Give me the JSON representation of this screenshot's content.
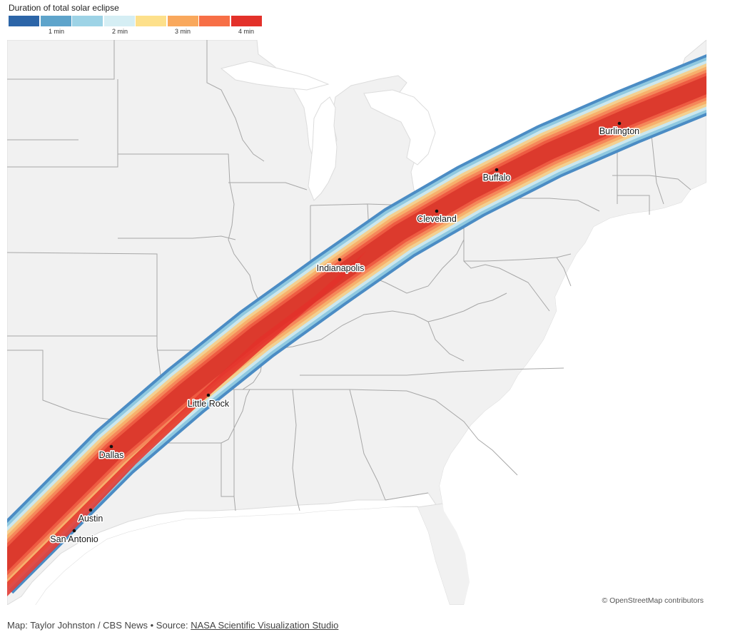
{
  "legend": {
    "title": "Duration of total solar eclipse",
    "colors": [
      "#2c65a8",
      "#5ea4cb",
      "#9dd3e6",
      "#d5eef4",
      "#fde08b",
      "#f9a85c",
      "#f76f46",
      "#e3312a"
    ],
    "ticks": [
      "1 min",
      "2 min",
      "3 min",
      "4 min"
    ]
  },
  "path_band_colors": [
    "#4b8cc4",
    "#90c9e0",
    "#cbe7ef",
    "#f4d090",
    "#f7b06c",
    "#f5875a",
    "#ee5b42",
    "#dc3a2d"
  ],
  "map_colors": {
    "land": "#f1f1f1",
    "water": "#ffffff",
    "border": "#a7a7a7"
  },
  "cities": [
    {
      "name": "Burlington",
      "label": "Burlington"
    },
    {
      "name": "Buffalo",
      "label": "Buffalo"
    },
    {
      "name": "Cleveland",
      "label": "Cleveland"
    },
    {
      "name": "Indianapolis",
      "label": "Indianapolis"
    },
    {
      "name": "Little Rock",
      "label": "Little Rock"
    },
    {
      "name": "Dallas",
      "label": "Dallas"
    },
    {
      "name": "Austin",
      "label": "Austin"
    },
    {
      "name": "San Antonio",
      "label": "San Antonio"
    }
  ],
  "attribution": "© OpenStreetMap contributors",
  "credit": {
    "prefix": "Map: Taylor Johnston / CBS News • Source: ",
    "link_text": "NASA Scientific Visualization Studio"
  }
}
